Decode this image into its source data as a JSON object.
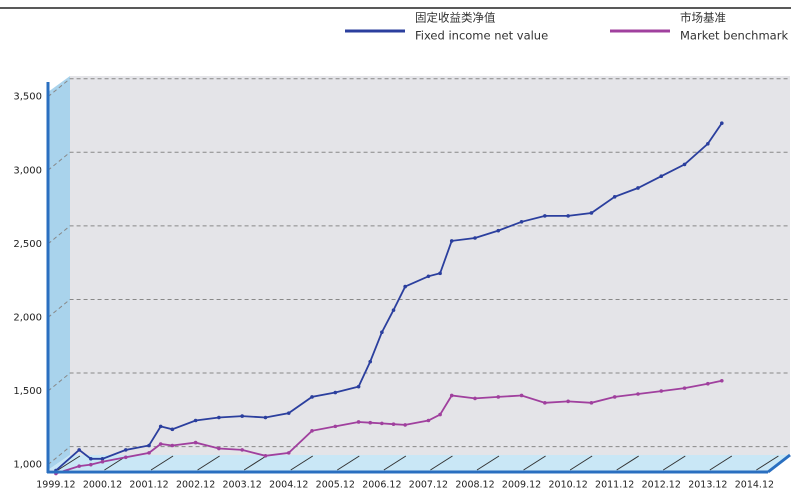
{
  "chart_data": {
    "type": "line",
    "x": [
      2000,
      2000.5,
      2000.75,
      2001,
      2001.5,
      2002,
      2002.25,
      2002.5,
      2003,
      2003.5,
      2004,
      2004.5,
      2005,
      2005.5,
      2006,
      2006.5,
      2006.75,
      2007,
      2007.25,
      2007.5,
      2008,
      2008.25,
      2008.5,
      2009,
      2009.5,
      2010,
      2010.5,
      2011,
      2011.5,
      2012,
      2012.5,
      2013,
      2013.5,
      2014,
      2014.3
    ],
    "series": [
      {
        "name": "固定收益类净值 Fixed income net value",
        "legend_cn": "固定收益类净值",
        "legend_en": "Fixed income net value",
        "color": "#2b3f9e",
        "values": [
          960,
          1100,
          1040,
          1040,
          1100,
          1130,
          1260,
          1240,
          1300,
          1320,
          1330,
          1320,
          1350,
          1460,
          1490,
          1530,
          1700,
          1900,
          2050,
          2210,
          2280,
          2300,
          2520,
          2540,
          2590,
          2650,
          2690,
          2690,
          2710,
          2820,
          2880,
          2960,
          3040,
          3180,
          3320
        ]
      },
      {
        "name": "市场基准 Market benchmark",
        "legend_cn": "市场基准",
        "legend_en": "Market benchmark",
        "color": "#a0409e",
        "values": [
          940,
          990,
          1000,
          1020,
          1050,
          1080,
          1140,
          1130,
          1150,
          1110,
          1100,
          1060,
          1080,
          1230,
          1260,
          1290,
          1285,
          1280,
          1275,
          1270,
          1300,
          1340,
          1470,
          1450,
          1460,
          1470,
          1420,
          1430,
          1420,
          1460,
          1480,
          1500,
          1520,
          1550,
          1570
        ]
      }
    ],
    "xlim": [
      1999.83,
      2015.7
    ],
    "xticks": [
      {
        "value": 2000,
        "label": "1999.12"
      },
      {
        "value": 2001,
        "label": "2000.12"
      },
      {
        "value": 2002,
        "label": "2001.12"
      },
      {
        "value": 2003,
        "label": "2002.12"
      },
      {
        "value": 2004,
        "label": "2003.12"
      },
      {
        "value": 2005,
        "label": "2004.12"
      },
      {
        "value": 2006,
        "label": "2005.12"
      },
      {
        "value": 2007,
        "label": "2006.12"
      },
      {
        "value": 2008,
        "label": "2007.12"
      },
      {
        "value": 2009,
        "label": "2008.12"
      },
      {
        "value": 2010,
        "label": "2009.12"
      },
      {
        "value": 2011,
        "label": "2010.12"
      },
      {
        "value": 2012,
        "label": "2011.12"
      },
      {
        "value": 2013,
        "label": "2012.12"
      },
      {
        "value": 2014,
        "label": "2013.12"
      },
      {
        "value": 2015,
        "label": "2014.12"
      }
    ],
    "ylim": [
      950,
      3600
    ],
    "yticks": [
      {
        "value": 1000,
        "label": "1,000"
      },
      {
        "value": 1500,
        "label": "1,500"
      },
      {
        "value": 2000,
        "label": "2,000"
      },
      {
        "value": 2500,
        "label": "2,500"
      },
      {
        "value": 3000,
        "label": "3,000"
      },
      {
        "value": 3500,
        "label": "3,500"
      }
    ],
    "grid": true
  }
}
